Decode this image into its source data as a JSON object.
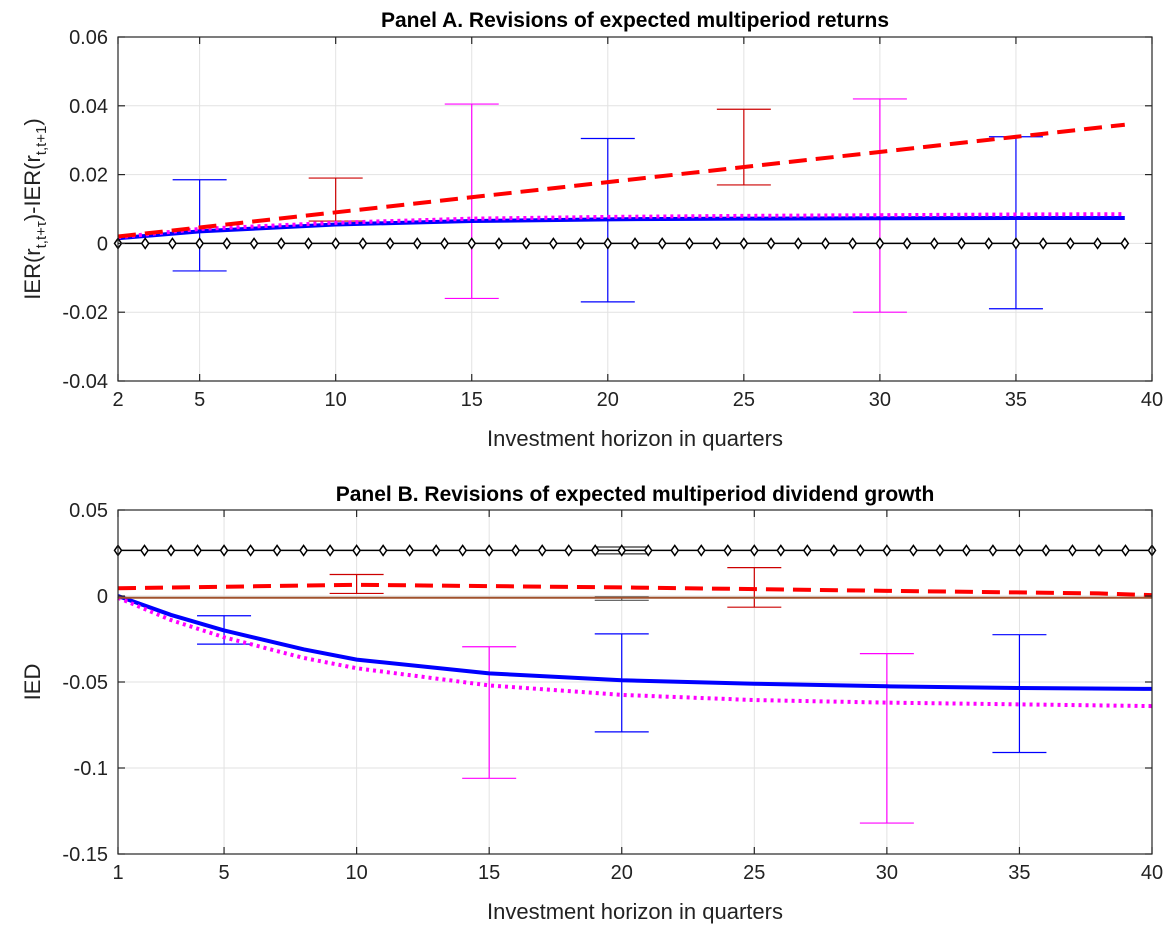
{
  "chart_data": [
    {
      "type": "line",
      "title": "Panel A. Revisions of expected multiperiod returns",
      "xlabel": "Investment horizon in quarters",
      "ylabel_main": "IER(r",
      "ylabel_sub1": "t,t+τ",
      "ylabel_mid": ")-IER(r",
      "ylabel_sub2": "t,t+1",
      "ylabel_end": ")",
      "xlim": [
        2,
        40
      ],
      "ylim": [
        -0.04,
        0.06
      ],
      "xticks": [
        2,
        5,
        10,
        15,
        20,
        25,
        30,
        35,
        40
      ],
      "yticks": [
        -0.04,
        -0.02,
        0,
        0.02,
        0.04,
        0.06
      ],
      "ytick_labels": [
        "-0.04",
        "-0.02",
        "0",
        "0.02",
        "0.04",
        "0.06"
      ],
      "grid": true,
      "series": [
        {
          "style": "solid",
          "color": "#0000ff",
          "x": [
            2,
            5,
            10,
            15,
            20,
            25,
            30,
            35,
            39
          ],
          "y": [
            0.0015,
            0.0035,
            0.0055,
            0.0065,
            0.007,
            0.0072,
            0.0073,
            0.0074,
            0.0074
          ]
        },
        {
          "style": "dotted",
          "color": "#ff00ff",
          "x": [
            2,
            5,
            10,
            15,
            20,
            25,
            30,
            35,
            39
          ],
          "y": [
            0.0018,
            0.0042,
            0.006,
            0.0072,
            0.0077,
            0.008,
            0.0082,
            0.0084,
            0.0085
          ]
        },
        {
          "style": "dashed",
          "color": "#ff0000",
          "x": [
            2,
            39
          ],
          "y": [
            0.002,
            0.0345
          ]
        },
        {
          "style": "diamond-line",
          "color": "#000000",
          "x": [
            2,
            39
          ],
          "y": [
            0,
            0
          ]
        }
      ],
      "error_bars": [
        {
          "x": 5,
          "low": -0.008,
          "high": 0.0185,
          "color": "#0000ff"
        },
        {
          "x": 10,
          "low": 0.0065,
          "high": 0.019,
          "color": "#cc0000"
        },
        {
          "x": 15,
          "low": -0.016,
          "high": 0.0405,
          "color": "#ff00ff"
        },
        {
          "x": 20,
          "low": -0.017,
          "high": 0.0305,
          "color": "#0000ff"
        },
        {
          "x": 25,
          "low": 0.017,
          "high": 0.039,
          "color": "#cc0000"
        },
        {
          "x": 30,
          "low": -0.02,
          "high": 0.042,
          "color": "#ff00ff"
        },
        {
          "x": 35,
          "low": -0.019,
          "high": 0.031,
          "color": "#0000ff"
        }
      ]
    },
    {
      "type": "line",
      "title": "Panel B. Revisions of expected multiperiod dividend growth",
      "xlabel": "Investment horizon in quarters",
      "ylabel": "IED",
      "xlim": [
        1,
        40
      ],
      "ylim": [
        -0.15,
        0.05
      ],
      "xticks": [
        1,
        5,
        10,
        15,
        20,
        25,
        30,
        35,
        40
      ],
      "yticks": [
        -0.15,
        -0.1,
        -0.05,
        0,
        0.05
      ],
      "ytick_labels": [
        "-0.15",
        "-0.1",
        "-0.05",
        "0",
        "0.05"
      ],
      "grid": true,
      "series": [
        {
          "style": "solid",
          "color": "#0000ff",
          "x": [
            1,
            3,
            5,
            8,
            10,
            15,
            20,
            25,
            30,
            35,
            40
          ],
          "y": [
            0,
            -0.011,
            -0.02,
            -0.031,
            -0.037,
            -0.045,
            -0.049,
            -0.051,
            -0.0525,
            -0.0535,
            -0.054
          ]
        },
        {
          "style": "dotted",
          "color": "#ff00ff",
          "x": [
            1,
            3,
            5,
            8,
            10,
            15,
            20,
            25,
            30,
            35,
            40
          ],
          "y": [
            -0.001,
            -0.014,
            -0.024,
            -0.036,
            -0.042,
            -0.052,
            -0.0575,
            -0.0605,
            -0.062,
            -0.063,
            -0.064
          ]
        },
        {
          "style": "dashed",
          "color": "#ff0000",
          "x": [
            1,
            10,
            20,
            30,
            38,
            40
          ],
          "y": [
            0.0045,
            0.0065,
            0.005,
            0.003,
            0.0015,
            0.0005
          ]
        },
        {
          "style": "solid-thin",
          "color": "#a0522d",
          "x": [
            1,
            40
          ],
          "y": [
            -0.001,
            -0.001
          ]
        },
        {
          "style": "diamond-line",
          "color": "#000000",
          "x": [
            1,
            40
          ],
          "y": [
            0.0265,
            0.0265
          ]
        }
      ],
      "error_bars": [
        {
          "x": 5,
          "low": -0.028,
          "high": -0.0115,
          "color": "#0000ff"
        },
        {
          "x": 10,
          "low": 0.0015,
          "high": 0.0125,
          "color": "#cc0000"
        },
        {
          "x": 15,
          "low": -0.106,
          "high": -0.0295,
          "color": "#ff00ff"
        },
        {
          "x": 20,
          "low": -0.079,
          "high": -0.022,
          "color": "#0000ff"
        },
        {
          "x": 20,
          "low": -0.0025,
          "high": -0.0005,
          "color": "#555555"
        },
        {
          "x": 20,
          "low": 0.0245,
          "high": 0.0285,
          "color": "#333333"
        },
        {
          "x": 25,
          "low": -0.0065,
          "high": 0.0165,
          "color": "#cc0000"
        },
        {
          "x": 30,
          "low": -0.132,
          "high": -0.0335,
          "color": "#ff00ff"
        },
        {
          "x": 35,
          "low": -0.091,
          "high": -0.0225,
          "color": "#0000ff"
        }
      ]
    }
  ]
}
